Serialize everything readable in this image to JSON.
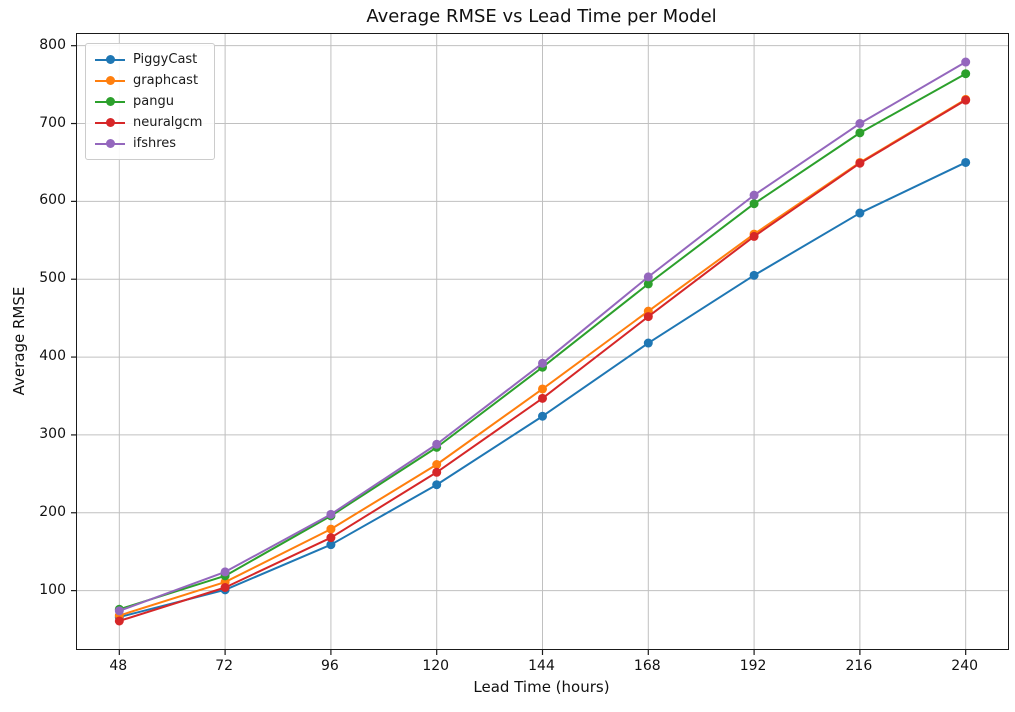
{
  "chart_data": {
    "type": "line",
    "title": "Average RMSE vs Lead Time per Model",
    "xlabel": "Lead Time (hours)",
    "ylabel": "Average RMSE",
    "x": [
      48,
      72,
      96,
      120,
      144,
      168,
      192,
      216,
      240
    ],
    "series": [
      {
        "name": "PiggyCast",
        "color": "#1f77b4",
        "values": [
          66,
          101,
          159,
          236,
          324,
          418,
          505,
          585,
          650
        ]
      },
      {
        "name": "graphcast",
        "color": "#ff7f0e",
        "values": [
          68,
          111,
          179,
          262,
          359,
          459,
          558,
          650,
          731
        ]
      },
      {
        "name": "pangu",
        "color": "#2ca02c",
        "values": [
          76,
          119,
          196,
          284,
          387,
          494,
          597,
          688,
          764
        ]
      },
      {
        "name": "neuralgcm",
        "color": "#d62728",
        "values": [
          61,
          104,
          168,
          252,
          347,
          452,
          555,
          649,
          730
        ]
      },
      {
        "name": "ifshres",
        "color": "#9467bd",
        "values": [
          74,
          124,
          198,
          288,
          392,
          503,
          608,
          700,
          779
        ]
      }
    ],
    "xticks": [
      48,
      72,
      96,
      120,
      144,
      168,
      192,
      216,
      240
    ],
    "yticks": [
      100,
      200,
      300,
      400,
      500,
      600,
      700,
      800
    ],
    "xlim": [
      38.4,
      249.6
    ],
    "ylim": [
      25,
      815
    ],
    "grid": true,
    "grid_color": "#c0c0c0",
    "spine_color": "#1a1a1a",
    "legend_position": "upper left",
    "marker": "circle",
    "line_width": 2,
    "marker_radius": 4.5
  }
}
